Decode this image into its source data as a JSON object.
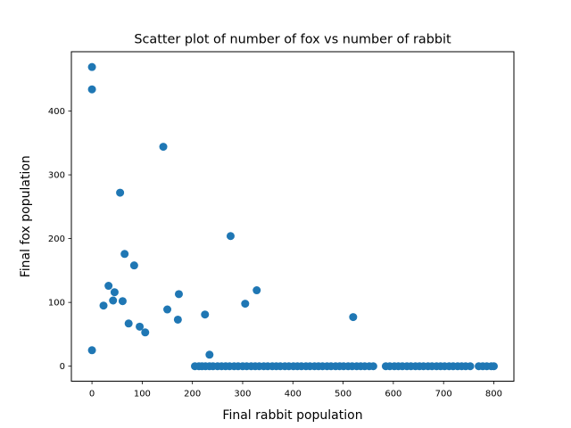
{
  "chart_data": {
    "type": "scatter",
    "title": "Scatter plot of number of fox vs number of rabbit",
    "xlabel": "Final rabbit population",
    "ylabel": "Final fox population",
    "xlim": [
      -41,
      840
    ],
    "ylim": [
      -23.5,
      493
    ],
    "x_ticks": [
      0,
      100,
      200,
      300,
      400,
      500,
      600,
      700,
      800
    ],
    "y_ticks": [
      0,
      100,
      200,
      300,
      400
    ],
    "grid": false,
    "legend": "none",
    "marker_color": "#1f77b4",
    "points": [
      {
        "x": 0,
        "y": 469
      },
      {
        "x": 0,
        "y": 434
      },
      {
        "x": 0,
        "y": 25
      },
      {
        "x": 23,
        "y": 95
      },
      {
        "x": 33,
        "y": 126
      },
      {
        "x": 42,
        "y": 103
      },
      {
        "x": 45,
        "y": 116
      },
      {
        "x": 56,
        "y": 272
      },
      {
        "x": 61,
        "y": 102
      },
      {
        "x": 65,
        "y": 176
      },
      {
        "x": 73,
        "y": 67
      },
      {
        "x": 84,
        "y": 158
      },
      {
        "x": 95,
        "y": 62
      },
      {
        "x": 106,
        "y": 53
      },
      {
        "x": 142,
        "y": 344
      },
      {
        "x": 150,
        "y": 89
      },
      {
        "x": 171,
        "y": 73
      },
      {
        "x": 173,
        "y": 113
      },
      {
        "x": 225,
        "y": 81
      },
      {
        "x": 234,
        "y": 18
      },
      {
        "x": 276,
        "y": 204
      },
      {
        "x": 305,
        "y": 98
      },
      {
        "x": 328,
        "y": 119
      },
      {
        "x": 520,
        "y": 77
      },
      {
        "x": 205,
        "y": 0
      },
      {
        "x": 213,
        "y": 0
      },
      {
        "x": 219,
        "y": 0
      },
      {
        "x": 226,
        "y": 0
      },
      {
        "x": 234,
        "y": 0
      },
      {
        "x": 241,
        "y": 0
      },
      {
        "x": 250,
        "y": 0
      },
      {
        "x": 258,
        "y": 0
      },
      {
        "x": 266,
        "y": 0
      },
      {
        "x": 274,
        "y": 0
      },
      {
        "x": 283,
        "y": 0
      },
      {
        "x": 291,
        "y": 0
      },
      {
        "x": 300,
        "y": 0
      },
      {
        "x": 308,
        "y": 0
      },
      {
        "x": 317,
        "y": 0
      },
      {
        "x": 325,
        "y": 0
      },
      {
        "x": 333,
        "y": 0
      },
      {
        "x": 342,
        "y": 0
      },
      {
        "x": 350,
        "y": 0
      },
      {
        "x": 359,
        "y": 0
      },
      {
        "x": 367,
        "y": 0
      },
      {
        "x": 375,
        "y": 0
      },
      {
        "x": 384,
        "y": 0
      },
      {
        "x": 392,
        "y": 0
      },
      {
        "x": 401,
        "y": 0
      },
      {
        "x": 409,
        "y": 0
      },
      {
        "x": 417,
        "y": 0
      },
      {
        "x": 426,
        "y": 0
      },
      {
        "x": 434,
        "y": 0
      },
      {
        "x": 443,
        "y": 0
      },
      {
        "x": 451,
        "y": 0
      },
      {
        "x": 459,
        "y": 0
      },
      {
        "x": 468,
        "y": 0
      },
      {
        "x": 476,
        "y": 0
      },
      {
        "x": 485,
        "y": 0
      },
      {
        "x": 493,
        "y": 0
      },
      {
        "x": 501,
        "y": 0
      },
      {
        "x": 510,
        "y": 0
      },
      {
        "x": 518,
        "y": 0
      },
      {
        "x": 527,
        "y": 0
      },
      {
        "x": 535,
        "y": 0
      },
      {
        "x": 543,
        "y": 0
      },
      {
        "x": 552,
        "y": 0
      },
      {
        "x": 560,
        "y": 0
      },
      {
        "x": 585,
        "y": 0
      },
      {
        "x": 593,
        "y": 0
      },
      {
        "x": 602,
        "y": 0
      },
      {
        "x": 610,
        "y": 0
      },
      {
        "x": 618,
        "y": 0
      },
      {
        "x": 627,
        "y": 0
      },
      {
        "x": 635,
        "y": 0
      },
      {
        "x": 644,
        "y": 0
      },
      {
        "x": 652,
        "y": 0
      },
      {
        "x": 660,
        "y": 0
      },
      {
        "x": 669,
        "y": 0
      },
      {
        "x": 677,
        "y": 0
      },
      {
        "x": 686,
        "y": 0
      },
      {
        "x": 694,
        "y": 0
      },
      {
        "x": 702,
        "y": 0
      },
      {
        "x": 711,
        "y": 0
      },
      {
        "x": 719,
        "y": 0
      },
      {
        "x": 728,
        "y": 0
      },
      {
        "x": 736,
        "y": 0
      },
      {
        "x": 744,
        "y": 0
      },
      {
        "x": 753,
        "y": 0
      },
      {
        "x": 770,
        "y": 0
      },
      {
        "x": 778,
        "y": 0
      },
      {
        "x": 786,
        "y": 0
      },
      {
        "x": 795,
        "y": 0
      },
      {
        "x": 800,
        "y": 0
      }
    ]
  }
}
